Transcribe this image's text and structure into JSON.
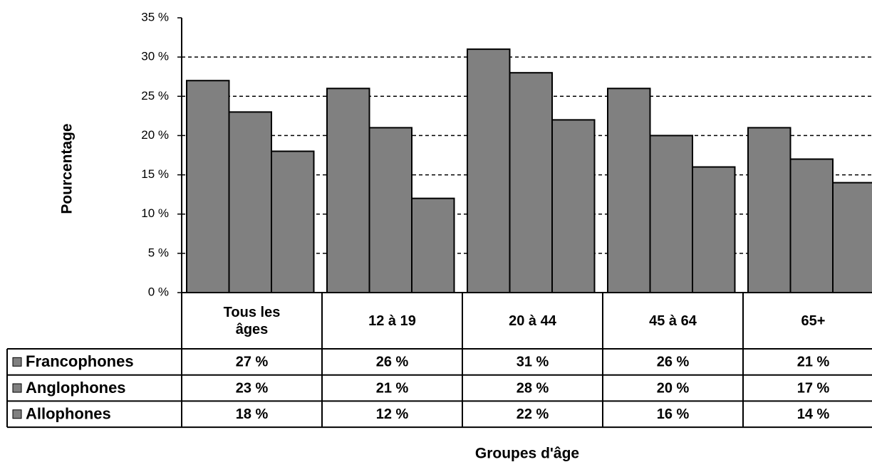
{
  "chart_data": {
    "type": "bar",
    "x_label": "Groupes d'âge",
    "y_label": "Pourcentage",
    "categories": [
      "Tous les âges",
      "12 à 19",
      "20 à 44",
      "45 à 64",
      "65+"
    ],
    "series": [
      {
        "name": "Francophones",
        "color": "#808080",
        "values": [
          27,
          26,
          31,
          26,
          21
        ],
        "value_labels": [
          "27 %",
          "26 %",
          "31 %",
          "26 %",
          "21 %"
        ]
      },
      {
        "name": "Anglophones",
        "color": "#808080",
        "values": [
          23,
          21,
          28,
          20,
          17
        ],
        "value_labels": [
          "23 %",
          "21 %",
          "28 %",
          "20 %",
          "17 %"
        ]
      },
      {
        "name": "Allophones",
        "color": "#808080",
        "values": [
          18,
          12,
          22,
          16,
          14
        ],
        "value_labels": [
          "18 %",
          "12 %",
          "22 %",
          "16 %",
          "14 %"
        ]
      }
    ],
    "ylim": [
      0,
      35
    ],
    "yticks": [
      {
        "value": 0,
        "label": "0 %"
      },
      {
        "value": 5,
        "label": "5 %"
      },
      {
        "value": 10,
        "label": "10 %"
      },
      {
        "value": 15,
        "label": "15 %"
      },
      {
        "value": 20,
        "label": "20 %"
      },
      {
        "value": 25,
        "label": "25 %"
      },
      {
        "value": 30,
        "label": "30 %"
      },
      {
        "value": 35,
        "label": "35 %"
      }
    ],
    "grid": true
  }
}
